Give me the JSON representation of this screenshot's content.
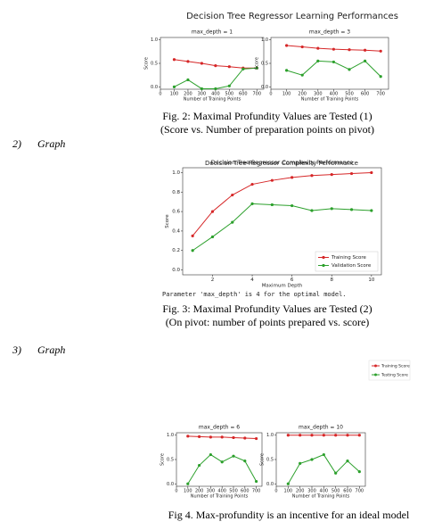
{
  "fig2": {
    "title": "Decision Tree Regressor Learning Performances",
    "panels": [
      {
        "type": "line",
        "title": "max_depth = 1",
        "xlabel": "Number of Training Points",
        "ylabel": "Score",
        "x": [
          100,
          200,
          300,
          400,
          500,
          600,
          700
        ],
        "xlim": [
          0,
          750
        ],
        "ylim": [
          -0.05,
          1.05
        ],
        "xticks": [
          0,
          100,
          200,
          300,
          400,
          500,
          600,
          700
        ],
        "yticks": [
          {
            "value": 0,
            "label": "0.0"
          },
          0.5,
          {
            "value": 1,
            "label": "1.0"
          }
        ],
        "series": [
          {
            "color": "#d62728",
            "values": [
              0.58,
              0.54,
              0.5,
              0.45,
              0.43,
              0.4,
              0.4
            ]
          },
          {
            "color": "#2ca02c",
            "values": [
              0.0,
              0.15,
              -0.04,
              -0.04,
              0.02,
              0.38,
              0.4
            ]
          }
        ]
      },
      {
        "type": "line",
        "title": "max_depth = 3",
        "xlabel": "Number of Training Points",
        "ylabel": "Score",
        "x": [
          100,
          200,
          300,
          400,
          500,
          600,
          700
        ],
        "xlim": [
          0,
          750
        ],
        "ylim": [
          -0.05,
          1.05
        ],
        "xticks": [
          0,
          100,
          200,
          300,
          400,
          500,
          600,
          700
        ],
        "yticks": [
          {
            "value": 0,
            "label": "0.0"
          },
          0.5,
          {
            "value": 1,
            "label": "1.0"
          }
        ],
        "series": [
          {
            "color": "#d62728",
            "values": [
              0.88,
              0.85,
              0.82,
              0.8,
              0.79,
              0.78,
              0.76
            ]
          },
          {
            "color": "#2ca02c",
            "values": [
              0.35,
              0.25,
              0.55,
              0.53,
              0.37,
              0.55,
              0.22
            ]
          }
        ]
      }
    ],
    "caption": [
      "Fig. 2: Maximal Profundity Values are Tested (1)",
      "(Score vs. Number of preparation points on pivot)"
    ]
  },
  "item2": {
    "number": "2)",
    "label": "Graph"
  },
  "fig3": {
    "chart": {
      "type": "line",
      "title": "Decision Tree Regressor Complexity Performance",
      "xlabel": "Maximum Depth",
      "ylabel": "Score",
      "x": [
        1,
        2,
        3,
        4,
        5,
        6,
        7,
        8,
        9,
        10
      ],
      "xlim": [
        0.5,
        10.5
      ],
      "ylim": [
        -0.05,
        1.05
      ],
      "xticks": [
        2,
        4,
        6,
        8,
        10
      ],
      "yticks": [
        {
          "value": 0,
          "label": "0.0"
        },
        0.2,
        0.4,
        0.6,
        0.8,
        {
          "value": 1,
          "label": "1.0"
        }
      ],
      "legend": "lower right",
      "series": [
        {
          "name": "Training Score",
          "color": "#d62728",
          "values": [
            0.35,
            0.6,
            0.77,
            0.88,
            0.92,
            0.95,
            0.97,
            0.98,
            0.99,
            1.0
          ]
        },
        {
          "name": "Validation Score",
          "color": "#2ca02c",
          "values": [
            0.2,
            0.34,
            0.49,
            0.68,
            0.67,
            0.66,
            0.61,
            0.63,
            0.62,
            0.61
          ]
        }
      ]
    },
    "note": "Parameter 'max_depth' is 4 for the optimal model.",
    "caption": [
      "Fig. 3: Maximal Profundity Values are Tested (2)",
      "(On pivot: number of points prepared vs. score)"
    ]
  },
  "item3": {
    "number": "3)",
    "label": "Graph"
  },
  "fig4": {
    "legend": [
      {
        "name": "Training Score",
        "color": "#d62728"
      },
      {
        "name": "Testing Score",
        "color": "#2ca02c"
      }
    ],
    "panels": [
      {
        "type": "line",
        "title": "max_depth = 6",
        "xlabel": "Number of Training Points",
        "ylabel": "Score",
        "x": [
          100,
          200,
          300,
          400,
          500,
          600,
          700
        ],
        "xlim": [
          0,
          750
        ],
        "ylim": [
          -0.05,
          1.05
        ],
        "xticks": [
          0,
          100,
          200,
          300,
          400,
          500,
          600,
          700
        ],
        "yticks": [
          {
            "value": 0,
            "label": "0.0"
          },
          0.5,
          {
            "value": 1,
            "label": "1.0"
          }
        ],
        "series": [
          {
            "color": "#d62728",
            "values": [
              0.98,
              0.97,
              0.96,
              0.96,
              0.95,
              0.94,
              0.93
            ]
          },
          {
            "color": "#2ca02c",
            "values": [
              0.0,
              0.38,
              0.6,
              0.45,
              0.57,
              0.47,
              0.05
            ]
          }
        ]
      },
      {
        "type": "line",
        "title": "max_depth = 10",
        "xlabel": "Number of Training Points",
        "ylabel": "Score",
        "x": [
          100,
          200,
          300,
          400,
          500,
          600,
          700
        ],
        "xlim": [
          0,
          750
        ],
        "ylim": [
          -0.05,
          1.05
        ],
        "xticks": [
          0,
          100,
          200,
          300,
          400,
          500,
          600,
          700
        ],
        "yticks": [
          {
            "value": 0,
            "label": "0.0"
          },
          0.5,
          {
            "value": 1,
            "label": "1.0"
          }
        ],
        "series": [
          {
            "color": "#d62728",
            "values": [
              1.0,
              1.0,
              1.0,
              1.0,
              1.0,
              1.0,
              1.0
            ]
          },
          {
            "color": "#2ca02c",
            "values": [
              0.0,
              0.42,
              0.5,
              0.6,
              0.22,
              0.47,
              0.25
            ]
          }
        ]
      }
    ],
    "caption": "Fig 4. Max-profundity is an incentive for an ideal model"
  }
}
